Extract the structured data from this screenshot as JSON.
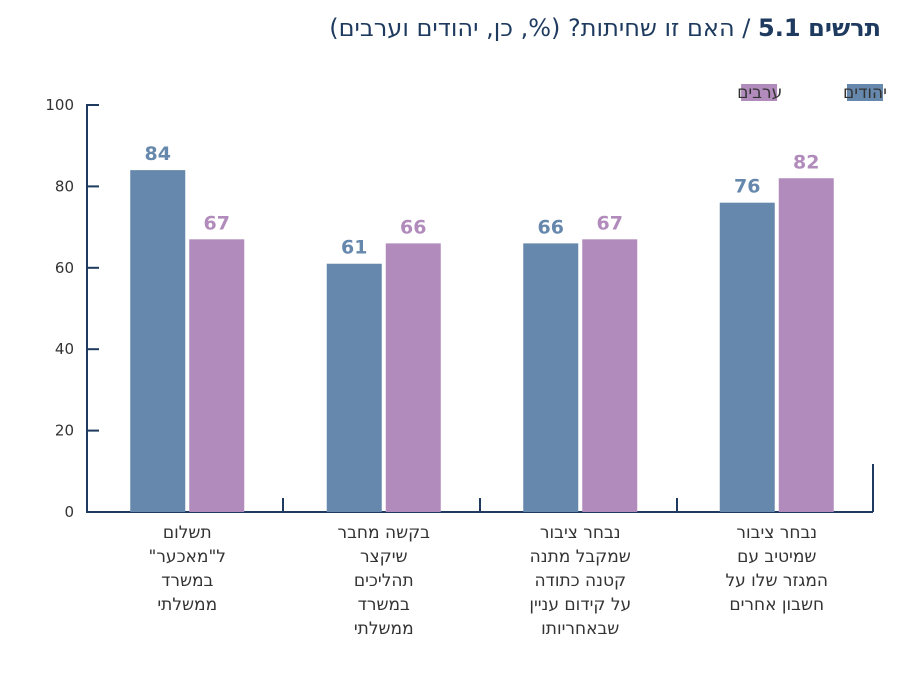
{
  "title": {
    "lead": "תרשים",
    "number": "5.1",
    "separator": "/",
    "text": "האם זו שחיתות? (%, כן, יהודים וערבים)"
  },
  "chart_data": {
    "type": "bar",
    "categories": [
      [
        "תשלום",
        "ל\"מאכער\"",
        "במשרד",
        "ממשלתי"
      ],
      [
        "בקשה מחבר",
        "שיקצר",
        "תהליכים",
        "במשרד",
        "ממשלתי"
      ],
      [
        "נבחר ציבור",
        "שמקבל מתנה",
        "קטנה כתודה",
        "על קידום עניין",
        "שבאחריותו"
      ],
      [
        "נבחר ציבור",
        "שמיטיב עם",
        "המגזר שלו על",
        "חשבון אחרים"
      ]
    ],
    "series": [
      {
        "name": "יהודים",
        "color": "#6688ad",
        "values": [
          84,
          61,
          66,
          76
        ]
      },
      {
        "name": "ערבים",
        "color": "#b18bbb",
        "values": [
          67,
          66,
          67,
          82
        ]
      }
    ],
    "ylim": [
      0,
      100
    ],
    "yticks": [
      "0",
      "20",
      "40",
      "60",
      "80",
      "100"
    ],
    "legend_position": "top-right",
    "grid": false
  }
}
